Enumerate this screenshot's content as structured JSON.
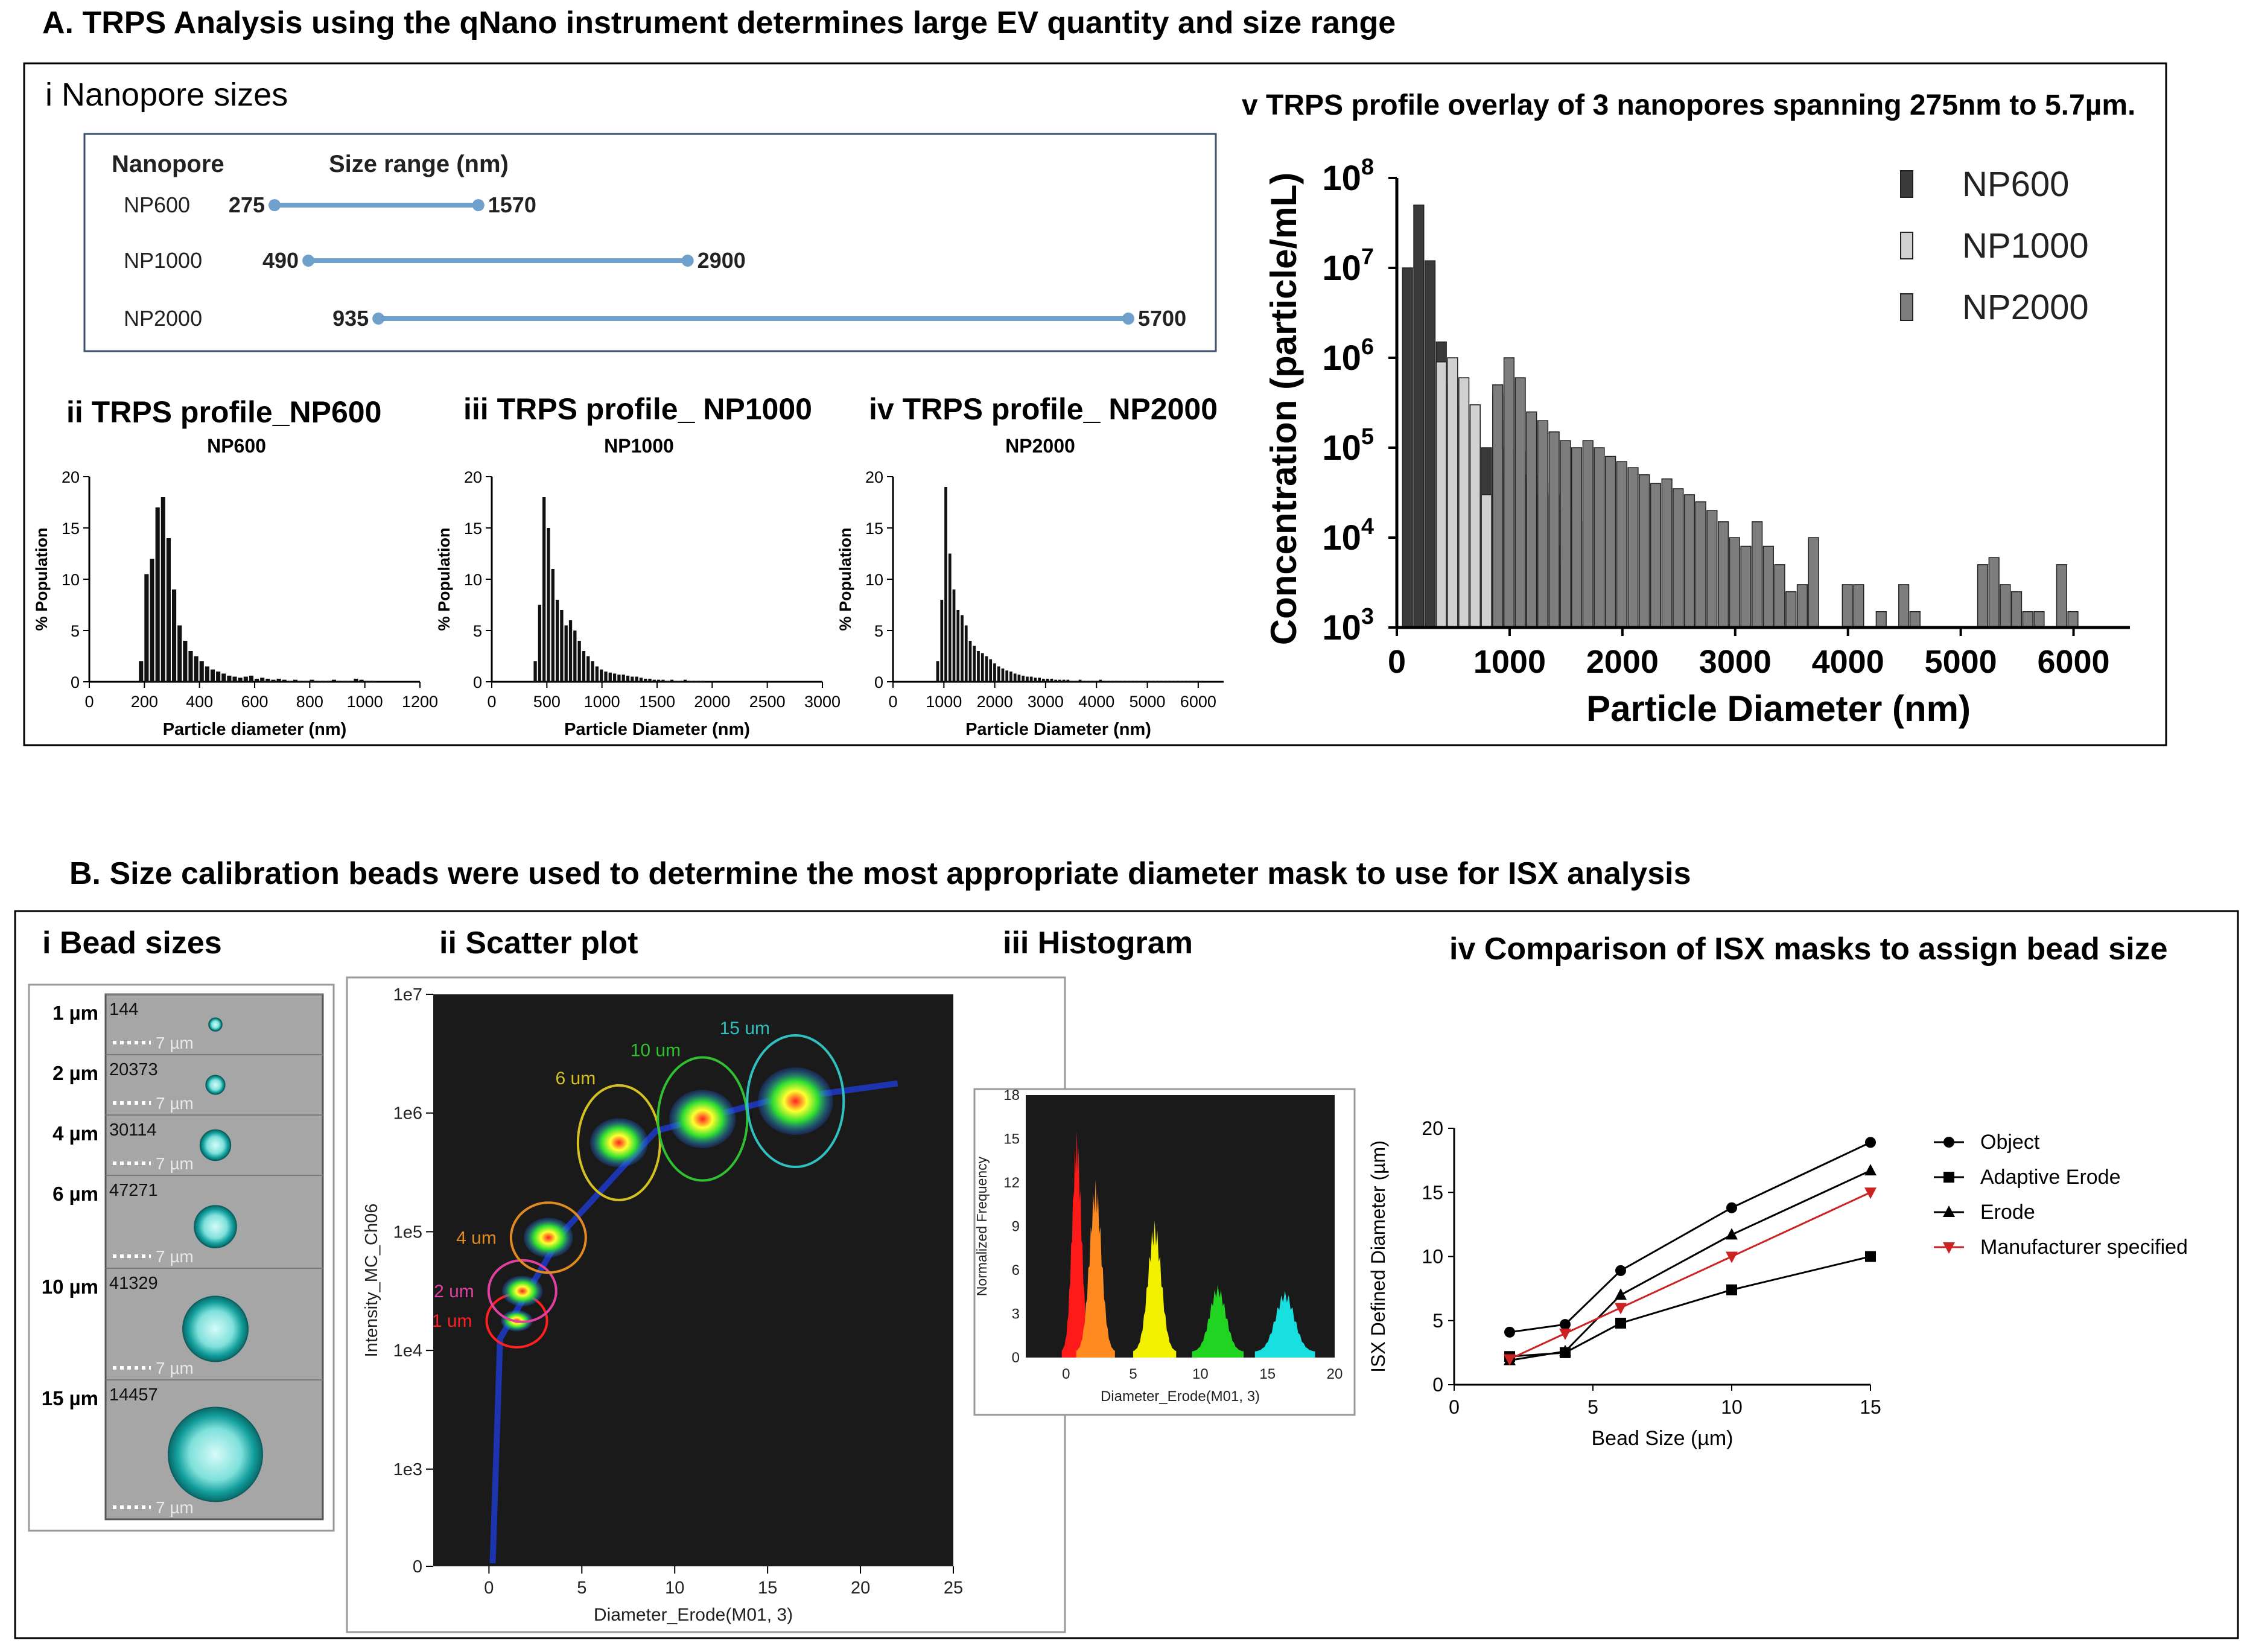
{
  "section_a": {
    "title": "A. TRPS Analysis using the qNano instrument determines large EV quantity and size range",
    "nanopore_panel": {
      "title": "i Nanopore sizes",
      "col_nanopore": "Nanopore",
      "col_size_range": "Size range (nm)",
      "axis_max": 5700,
      "rows": [
        {
          "name": "NP600",
          "min": 275,
          "max": 1570,
          "min_label": "275",
          "max_label": "1570"
        },
        {
          "name": "NP1000",
          "min": 490,
          "max": 2900,
          "min_label": "490",
          "max_label": "2900"
        },
        {
          "name": "NP2000",
          "min": 935,
          "max": 5700,
          "min_label": "935",
          "max_label": "5700"
        }
      ]
    }
  },
  "section_b": {
    "title": "B. Size calibration beads were used to determine the most appropriate diameter mask to use for ISX analysis",
    "bead_panel": {
      "title": "i Bead sizes",
      "scale_label": "7 µm",
      "rows": [
        {
          "label": "1 µm",
          "count": "144",
          "size": 1
        },
        {
          "label": "2 µm",
          "count": "20373",
          "size": 2
        },
        {
          "label": "4 µm",
          "count": "30114",
          "size": 4
        },
        {
          "label": "6 µm",
          "count": "47271",
          "size": 6
        },
        {
          "label": "10 µm",
          "count": "41329",
          "size": 10
        },
        {
          "label": "15 µm",
          "count": "14457",
          "size": 15
        }
      ]
    }
  },
  "chart_data": [
    {
      "id": "np600",
      "type": "bar",
      "panel_title": "ii TRPS profile_NP600",
      "title": "NP600",
      "xlabel": "Particle diameter (nm)",
      "ylabel": "% Population",
      "xlim": [
        0,
        1200
      ],
      "ylim": [
        0,
        20
      ],
      "xticks": [
        0,
        200,
        400,
        600,
        800,
        1000,
        1200
      ],
      "yticks": [
        0,
        5,
        10,
        15,
        20
      ],
      "bin_start": 180,
      "bin_width": 20,
      "values": [
        2,
        10.5,
        12,
        17,
        18,
        14,
        9,
        5.5,
        4,
        3,
        2.5,
        2,
        1.5,
        1.2,
        1,
        0.8,
        0.6,
        0.5,
        0.4,
        0.5,
        0.6,
        0.3,
        0.4,
        0.3,
        0.2,
        0.3,
        0.2,
        0.1,
        0.2,
        0.1,
        0.1,
        0.2,
        0.1,
        0.1,
        0.1,
        0.2,
        0.1,
        0.1,
        0.1,
        0.3,
        0.2,
        0.1,
        0.1
      ]
    },
    {
      "id": "np1000",
      "type": "bar",
      "panel_title": "iii TRPS profile_ NP1000",
      "title": "NP1000",
      "xlabel": "Particle Diameter (nm)",
      "ylabel": "% Population",
      "xlim": [
        0,
        3000
      ],
      "ylim": [
        0,
        20
      ],
      "xticks": [
        0,
        500,
        1000,
        1500,
        2000,
        2500,
        3000
      ],
      "yticks": [
        0,
        5,
        10,
        15,
        20
      ],
      "bin_start": 380,
      "bin_width": 40,
      "values": [
        2,
        7.5,
        18,
        15,
        11,
        8,
        7,
        5.5,
        6,
        5,
        4,
        3,
        2.5,
        2,
        1.5,
        1.2,
        1,
        0.9,
        0.8,
        0.7,
        0.7,
        0.6,
        0.5,
        0.5,
        0.4,
        0.3,
        0.3,
        0.2,
        0.2,
        0.2,
        0.1,
        0.2,
        0.1,
        0.1,
        0.2,
        0.1,
        0.1,
        0.1,
        0.1
      ]
    },
    {
      "id": "np2000",
      "type": "bar",
      "panel_title": "iv TRPS profile_ NP2000",
      "title": "NP2000",
      "xlabel": "Particle Diameter (nm)",
      "ylabel": "% Population",
      "xlim": [
        0,
        6500
      ],
      "ylim": [
        0,
        20
      ],
      "xticks": [
        0,
        1000,
        2000,
        3000,
        4000,
        5000,
        6000
      ],
      "yticks": [
        0,
        5,
        10,
        15,
        20
      ],
      "bin_start": 850,
      "bin_width": 80,
      "values": [
        2,
        8,
        19,
        12.5,
        9,
        7,
        6.5,
        5.5,
        4,
        3.5,
        3,
        2.8,
        2.5,
        2.2,
        1.8,
        1.5,
        1.3,
        1.1,
        1,
        0.8,
        0.7,
        0.6,
        0.5,
        0.5,
        0.4,
        0.4,
        0.3,
        0.3,
        0.3,
        0.2,
        0.2,
        0.2,
        0.2,
        0.1,
        0.1,
        0.2,
        0.1,
        0.1,
        0.1,
        0.1,
        0.2,
        0.1,
        0.1,
        0.1,
        0.1,
        0.1,
        0.1,
        0.1,
        0.1,
        0.1,
        0.1,
        0.1,
        0.1,
        0.1,
        0.1,
        0.1,
        0.1,
        0.1,
        0.1,
        0.1,
        0.1,
        0.1,
        0.1,
        0.1,
        0.1,
        0.1
      ]
    },
    {
      "id": "overlay",
      "type": "bar",
      "panel_title": "v TRPS profile overlay of 3 nanopores spanning 275nm to 5.7µm.",
      "title": "",
      "xlabel": "Particle Diameter (nm)",
      "ylabel": "Concentration (particle/mL)",
      "yscale": "log",
      "xlim": [
        0,
        6500
      ],
      "ylim": [
        1000,
        100000000
      ],
      "xticks": [
        0,
        1000,
        2000,
        3000,
        4000,
        5000,
        6000
      ],
      "ytick_exponents": [
        3,
        4,
        5,
        6,
        7,
        8
      ],
      "ytick_base": "10",
      "legend_position": "top-right",
      "bin_width": 100,
      "series": [
        {
          "name": "NP600",
          "color": "#3a3a3a",
          "x": [
            100,
            200,
            300,
            400,
            500,
            600,
            700,
            800,
            900,
            1000,
            1100,
            1200,
            1300,
            1400,
            1500
          ],
          "values": [
            10000000,
            50000000,
            12000000,
            1500000,
            500000,
            300000,
            200000,
            100000,
            50000,
            200000,
            50000,
            40000,
            30000,
            8000,
            5000
          ]
        },
        {
          "name": "NP1000",
          "color": "#d0d0d0",
          "x": [
            400,
            500,
            600,
            700,
            800,
            900,
            1000,
            1100,
            1200,
            1300,
            1400,
            1500,
            1600
          ],
          "values": [
            900000,
            1000000,
            600000,
            300000,
            30000,
            400000,
            100000,
            90000,
            50000,
            40000,
            30000,
            20000,
            15000
          ]
        },
        {
          "name": "NP2000",
          "color": "#7d7d7d",
          "x": [
            900,
            1000,
            1100,
            1200,
            1300,
            1400,
            1500,
            1600,
            1700,
            1800,
            1900,
            2000,
            2100,
            2200,
            2300,
            2400,
            2500,
            2600,
            2700,
            2800,
            2900,
            3000,
            3100,
            3200,
            3300,
            3400,
            3500,
            3600,
            3700,
            4000,
            4100,
            4300,
            4500,
            4600,
            5200,
            5300,
            5400,
            5500,
            5600,
            5700,
            5900,
            6000
          ],
          "values": [
            500000,
            1000000,
            600000,
            250000,
            200000,
            150000,
            120000,
            100000,
            120000,
            100000,
            80000,
            70000,
            60000,
            50000,
            40000,
            45000,
            35000,
            30000,
            25000,
            20000,
            15000,
            10000,
            8000,
            15000,
            8000,
            5000,
            2500,
            3000,
            10000,
            3000,
            3000,
            1500,
            3000,
            1500,
            5000,
            6000,
            3000,
            2500,
            1500,
            1500,
            5000,
            1500
          ]
        }
      ]
    },
    {
      "id": "scatter",
      "type": "scatter",
      "panel_title": "ii Scatter plot",
      "title": "",
      "xlabel": "Diameter_Erode(M01, 3)",
      "ylabel": "Intensity_MC_Ch06",
      "xlim": [
        -3,
        25
      ],
      "xticks": [
        0,
        5,
        10,
        15,
        20,
        25
      ],
      "yticks": [
        "0",
        "1e3",
        "1e4",
        "1e5",
        "1e6",
        "1e7"
      ],
      "populations": [
        {
          "label": "1 um",
          "x": 1.5,
          "log_y": 4.25,
          "color": "#ff2020"
        },
        {
          "label": "2 um",
          "x": 1.8,
          "log_y": 4.5,
          "color": "#e040a0"
        },
        {
          "label": "4 um",
          "x": 3.2,
          "log_y": 4.95,
          "color": "#e08a20"
        },
        {
          "label": "6 um",
          "x": 7.0,
          "log_y": 5.75,
          "color": "#d4c020"
        },
        {
          "label": "10 um",
          "x": 11.5,
          "log_y": 5.95,
          "color": "#30c030"
        },
        {
          "label": "15 um",
          "x": 16.5,
          "log_y": 6.1,
          "color": "#30c0c0"
        }
      ]
    },
    {
      "id": "histogram",
      "type": "area",
      "panel_title": "iii Histogram",
      "title": "",
      "xlabel": "Diameter_Erode(M01, 3)",
      "ylabel": "Normalized Frequency",
      "xlim": [
        -3,
        20
      ],
      "ylim": [
        0,
        18
      ],
      "xticks": [
        0,
        5,
        10,
        15,
        20
      ],
      "yticks": [
        0,
        3,
        6,
        9,
        12,
        15,
        18
      ],
      "peaks": [
        {
          "center": 0.8,
          "height": 15.2,
          "width": 0.35,
          "color": "#ff1a1a"
        },
        {
          "center": 2.2,
          "height": 11.8,
          "width": 0.45,
          "color": "#ff8a20"
        },
        {
          "center": 6.6,
          "height": 9.0,
          "width": 0.5,
          "color": "#f2f200"
        },
        {
          "center": 11.3,
          "height": 4.6,
          "width": 0.6,
          "color": "#22d422"
        },
        {
          "center": 16.3,
          "height": 4.2,
          "width": 0.7,
          "color": "#19e0e0"
        }
      ]
    },
    {
      "id": "comparison",
      "type": "line",
      "panel_title": "iv Comparison of ISX masks to assign bead size",
      "title": "",
      "xlabel": "Bead Size (µm)",
      "ylabel": "ISX Defined Diameter (µm)",
      "xlim": [
        0,
        15
      ],
      "ylim": [
        0,
        20
      ],
      "xticks": [
        0,
        5,
        10,
        15
      ],
      "yticks": [
        0,
        5,
        10,
        15,
        20
      ],
      "x": [
        2,
        4,
        6,
        10,
        15
      ],
      "series": [
        {
          "name": "Object",
          "marker": "circle",
          "color": "#000000",
          "values": [
            4.1,
            4.7,
            8.9,
            13.8,
            18.9
          ]
        },
        {
          "name": "Adaptive Erode",
          "marker": "square",
          "color": "#000000",
          "values": [
            2.2,
            2.5,
            4.8,
            7.4,
            10.0
          ]
        },
        {
          "name": "Erode",
          "marker": "triangle",
          "color": "#000000",
          "values": [
            1.9,
            2.6,
            7.0,
            11.7,
            16.7
          ]
        },
        {
          "name": "Manufacturer specified",
          "marker": "triangle-down",
          "color": "#cc2222",
          "values": [
            2,
            4,
            6,
            10,
            15
          ]
        }
      ]
    }
  ]
}
